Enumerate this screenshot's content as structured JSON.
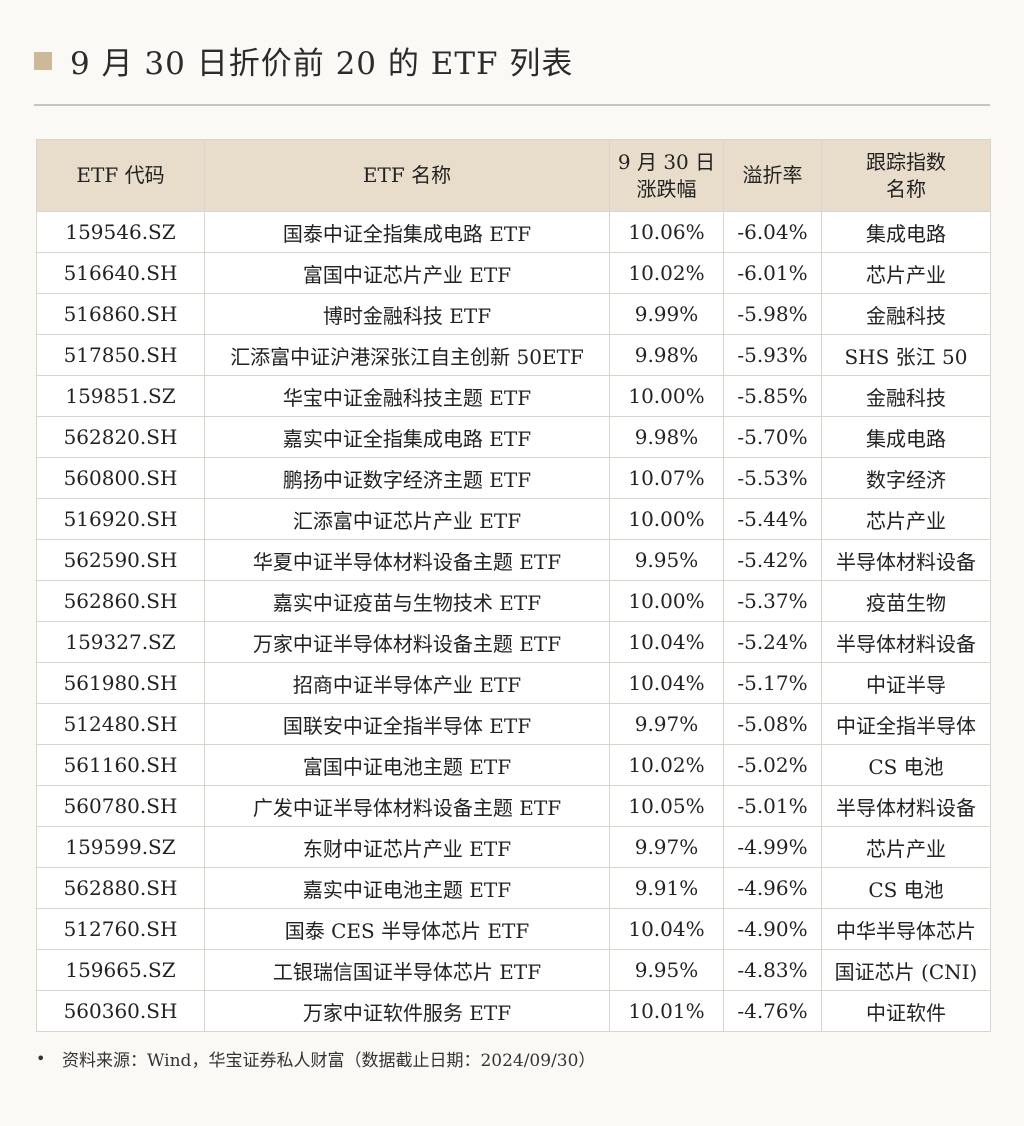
{
  "title": "9 月 30 日折价前 20 的 ETF 列表",
  "table": {
    "headers": [
      "ETF 代码",
      "ETF 名称",
      "9 月 30 日\n涨跌幅",
      "溢折率",
      "跟踪指数\n名称"
    ],
    "rows": [
      [
        "159546.SZ",
        "国泰中证全指集成电路 ETF",
        "10.06%",
        "-6.04%",
        "集成电路"
      ],
      [
        "516640.SH",
        "富国中证芯片产业 ETF",
        "10.02%",
        "-6.01%",
        "芯片产业"
      ],
      [
        "516860.SH",
        "博时金融科技 ETF",
        "9.99%",
        "-5.98%",
        "金融科技"
      ],
      [
        "517850.SH",
        "汇添富中证沪港深张江自主创新 50ETF",
        "9.98%",
        "-5.93%",
        "SHS 张江 50"
      ],
      [
        "159851.SZ",
        "华宝中证金融科技主题 ETF",
        "10.00%",
        "-5.85%",
        "金融科技"
      ],
      [
        "562820.SH",
        "嘉实中证全指集成电路 ETF",
        "9.98%",
        "-5.70%",
        "集成电路"
      ],
      [
        "560800.SH",
        "鹏扬中证数字经济主题 ETF",
        "10.07%",
        "-5.53%",
        "数字经济"
      ],
      [
        "516920.SH",
        "汇添富中证芯片产业 ETF",
        "10.00%",
        "-5.44%",
        "芯片产业"
      ],
      [
        "562590.SH",
        "华夏中证半导体材料设备主题 ETF",
        "9.95%",
        "-5.42%",
        "半导体材料设备"
      ],
      [
        "562860.SH",
        "嘉实中证疫苗与生物技术 ETF",
        "10.00%",
        "-5.37%",
        "疫苗生物"
      ],
      [
        "159327.SZ",
        "万家中证半导体材料设备主题 ETF",
        "10.04%",
        "-5.24%",
        "半导体材料设备"
      ],
      [
        "561980.SH",
        "招商中证半导体产业 ETF",
        "10.04%",
        "-5.17%",
        "中证半导"
      ],
      [
        "512480.SH",
        "国联安中证全指半导体 ETF",
        "9.97%",
        "-5.08%",
        "中证全指半导体"
      ],
      [
        "561160.SH",
        "富国中证电池主题 ETF",
        "10.02%",
        "-5.02%",
        "CS 电池"
      ],
      [
        "560780.SH",
        "广发中证半导体材料设备主题 ETF",
        "10.05%",
        "-5.01%",
        "半导体材料设备"
      ],
      [
        "159599.SZ",
        "东财中证芯片产业 ETF",
        "9.97%",
        "-4.99%",
        "芯片产业"
      ],
      [
        "562880.SH",
        "嘉实中证电池主题 ETF",
        "9.91%",
        "-4.96%",
        "CS 电池"
      ],
      [
        "512760.SH",
        "国泰 CES 半导体芯片 ETF",
        "10.04%",
        "-4.90%",
        "中华半导体芯片"
      ],
      [
        "159665.SZ",
        "工银瑞信国证半导体芯片 ETF",
        "9.95%",
        "-4.83%",
        "国证芯片 (CNI)"
      ],
      [
        "560360.SH",
        "万家中证软件服务 ETF",
        "10.01%",
        "-4.76%",
        "中证软件"
      ]
    ]
  },
  "source_note": "资料来源：Wind，华宝证券私人财富（数据截止日期：2024/09/30）",
  "colors": {
    "accent_square": "#cdb89a",
    "header_bg": "#e8ddcb",
    "background": "#fbf9f6"
  }
}
